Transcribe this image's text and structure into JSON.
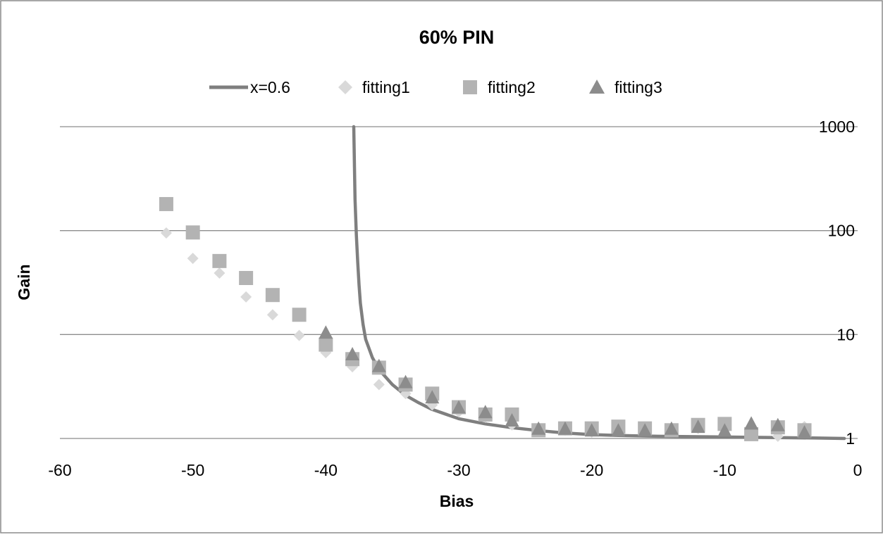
{
  "chart_data": {
    "type": "scatter",
    "title": "60% PIN",
    "xlabel": "Bias",
    "ylabel": "Gain",
    "xlim": [
      -60,
      0
    ],
    "ylim": [
      1,
      1000
    ],
    "y_scale": "log",
    "x_ticks": [
      "-60",
      "-50",
      "-40",
      "-30",
      "-20",
      "-10",
      "0"
    ],
    "y_ticks": [
      "1000",
      "100",
      "10",
      "1"
    ],
    "grid": true,
    "legend_position": "top",
    "colors": {
      "line": "#7f7f7f",
      "fitting1": "#d9d9d9",
      "fitting2": "#b3b3b3",
      "fitting3": "#8c8c8c",
      "grid": "#8c8c8c"
    },
    "series": [
      {
        "name": "x=0.6",
        "kind": "line",
        "x": [
          -37.9,
          -37.8,
          -37.7,
          -37.6,
          -37.5,
          -37.4,
          -37.2,
          -37.0,
          -36.5,
          -36.0,
          -35.0,
          -34.0,
          -33.0,
          -32.0,
          -30.0,
          -28.0,
          -26.0,
          -24.0,
          -22.0,
          -20.0,
          -18.0,
          -15.0,
          -12.0,
          -9.0,
          -6.0,
          -3.0,
          -1.0
        ],
        "y": [
          1000,
          200,
          90,
          50,
          30,
          20,
          12.5,
          9,
          6,
          4.6,
          3.3,
          2.6,
          2.2,
          1.9,
          1.55,
          1.38,
          1.27,
          1.19,
          1.13,
          1.09,
          1.07,
          1.05,
          1.04,
          1.03,
          1.02,
          1.01,
          1.0
        ]
      },
      {
        "name": "fitting1",
        "kind": "diamond",
        "x": [
          -52,
          -50,
          -48,
          -46,
          -44,
          -42,
          -40,
          -38,
          -36,
          -34,
          -32,
          -30,
          -28,
          -26,
          -24,
          -22,
          -20,
          -18,
          -16,
          -14,
          -12,
          -10,
          -8,
          -6,
          -4
        ],
        "y": [
          95,
          54,
          39,
          23,
          15.5,
          9.8,
          6.7,
          4.9,
          3.3,
          2.7,
          2.1,
          1.8,
          1.6,
          1.35,
          1.2,
          1.2,
          1.15,
          1.25,
          1.2,
          1.2,
          1.25,
          1.2,
          1.1,
          1.05,
          1.3
        ]
      },
      {
        "name": "fitting2",
        "kind": "square",
        "x": [
          -52,
          -50,
          -48,
          -46,
          -44,
          -42,
          -40,
          -38,
          -36,
          -34,
          -32,
          -30,
          -28,
          -26,
          -24,
          -22,
          -20,
          -18,
          -16,
          -14,
          -12,
          -10,
          -8,
          -6,
          -4
        ],
        "y": [
          180,
          96,
          51,
          35,
          24,
          15.5,
          8,
          5.8,
          4.8,
          3.3,
          2.7,
          2.0,
          1.7,
          1.7,
          1.2,
          1.25,
          1.25,
          1.3,
          1.25,
          1.2,
          1.35,
          1.38,
          1.1,
          1.28,
          1.2
        ]
      },
      {
        "name": "fitting3",
        "kind": "triangle",
        "x": [
          -40,
          -38,
          -36,
          -34,
          -32,
          -30,
          -28,
          -26,
          -24,
          -22,
          -20,
          -18,
          -16,
          -14,
          -12,
          -10,
          -8,
          -6,
          -4
        ],
        "y": [
          10.5,
          6.5,
          5.0,
          3.5,
          2.5,
          2.0,
          1.8,
          1.5,
          1.25,
          1.25,
          1.2,
          1.2,
          1.2,
          1.25,
          1.3,
          1.2,
          1.4,
          1.35,
          1.15
        ]
      }
    ]
  }
}
